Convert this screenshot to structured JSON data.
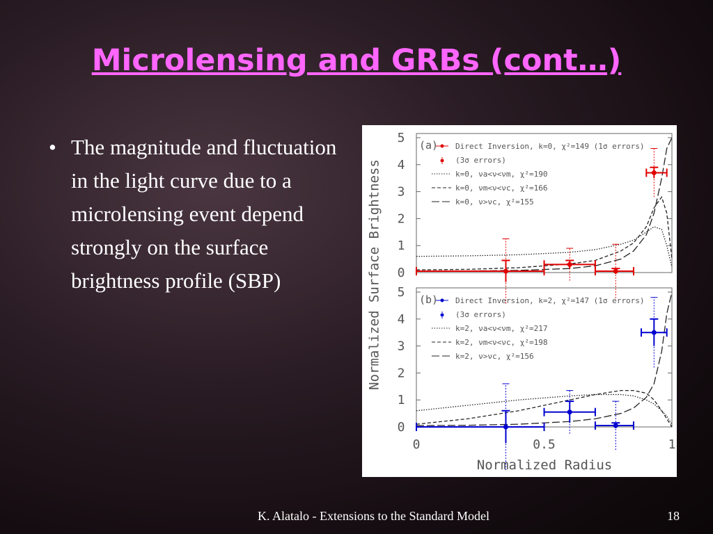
{
  "title": "Microlensing and GRBs (cont…)",
  "bullets": [
    "The magnitude and fluctuation in the light curve due to a microlensing event depend strongly on the surface brightness profile (SBP)"
  ],
  "footer": {
    "text": "K. Alatalo - Extensions to the Standard Model",
    "page": "18"
  },
  "figure": {
    "ylabel": "Normalized Surface Brightness",
    "xlabel": "Normalized Radius",
    "xlim": [
      0,
      1
    ],
    "xticks": [
      0,
      0.5,
      1
    ],
    "panels": [
      {
        "label": "(a)",
        "ylim": [
          0,
          5
        ],
        "yticks": [
          0,
          1,
          2,
          3,
          4,
          5
        ],
        "points": {
          "name": "Direct Inversion, k=0, χ²=149 (1σ errors)",
          "err3_name": "(3σ errors)",
          "color": "#e00000",
          "x": [
            0.35,
            0.6,
            0.78,
            0.93
          ],
          "values": [
            0.05,
            0.3,
            0.05,
            3.7
          ],
          "x_lo": [
            0,
            0.5,
            0.7,
            0.9
          ],
          "x_hi": [
            0.5,
            0.7,
            0.85,
            0.98
          ],
          "err": [
            0.4,
            0.15,
            0.1,
            0.2
          ],
          "err3": [
            1.2,
            0.6,
            1.0,
            0.9
          ]
        },
        "curves": {
          "x": [
            0,
            0.2,
            0.4,
            0.6,
            0.7,
            0.8,
            0.85,
            0.9,
            0.93,
            0.96,
            0.98,
            1
          ],
          "series": [
            {
              "name": "k=0, νa<ν<νm, χ²=190",
              "dash": "1.5,2",
              "values": [
                0.6,
                0.62,
                0.66,
                0.75,
                0.85,
                1.05,
                1.2,
                1.5,
                1.7,
                1.6,
                1.0,
                0.2
              ]
            },
            {
              "name": "k=0, νm<ν<νc, χ²=166",
              "dash": "5,3",
              "values": [
                0.1,
                0.12,
                0.18,
                0.32,
                0.45,
                0.8,
                1.1,
                1.7,
                2.4,
                2.8,
                2.2,
                0.5
              ]
            },
            {
              "name": "k=0, ν>νc, χ²=155",
              "dash": "11,4",
              "values": [
                0.05,
                0.06,
                0.08,
                0.15,
                0.25,
                0.5,
                0.8,
                1.4,
                2.2,
                3.5,
                4.6,
                5
              ]
            }
          ]
        }
      },
      {
        "label": "(b)",
        "ylim": [
          0,
          5
        ],
        "yticks": [
          0,
          1,
          2,
          3,
          4,
          5
        ],
        "points": {
          "name": "Direct Inversion, k=2, χ²=147 (1σ errors)",
          "err3_name": "(3σ errors)",
          "color": "#0000d0",
          "x": [
            0.35,
            0.6,
            0.78,
            0.93
          ],
          "values": [
            0.0,
            0.55,
            0.05,
            3.5
          ],
          "x_lo": [
            0,
            0.5,
            0.7,
            0.88
          ],
          "x_hi": [
            0.5,
            0.7,
            0.85,
            0.98
          ],
          "err": [
            0.6,
            0.4,
            0.1,
            0.5
          ],
          "err3": [
            1.6,
            0.8,
            0.9,
            1.3
          ]
        },
        "curves": {
          "x": [
            0,
            0.2,
            0.4,
            0.6,
            0.7,
            0.8,
            0.85,
            0.9,
            0.93,
            0.96,
            0.98,
            1
          ],
          "series": [
            {
              "name": "k=2, νa<ν<νm, χ²=217",
              "dash": "1.5,2",
              "values": [
                0.6,
                0.8,
                1.0,
                1.15,
                1.2,
                1.2,
                1.15,
                1.0,
                0.85,
                0.6,
                0.4,
                0.1
              ]
            },
            {
              "name": "k=2, νm<ν<νc, χ²=198",
              "dash": "5,3",
              "values": [
                0.1,
                0.3,
                0.6,
                1.0,
                1.2,
                1.35,
                1.35,
                1.25,
                1.0,
                0.6,
                0.3,
                0
              ]
            },
            {
              "name": "k=2, ν>νc, χ²=156",
              "dash": "11,4",
              "values": [
                0.05,
                0.06,
                0.1,
                0.2,
                0.3,
                0.5,
                0.7,
                1.1,
                1.6,
                2.8,
                4.2,
                5
              ]
            }
          ]
        }
      }
    ]
  }
}
